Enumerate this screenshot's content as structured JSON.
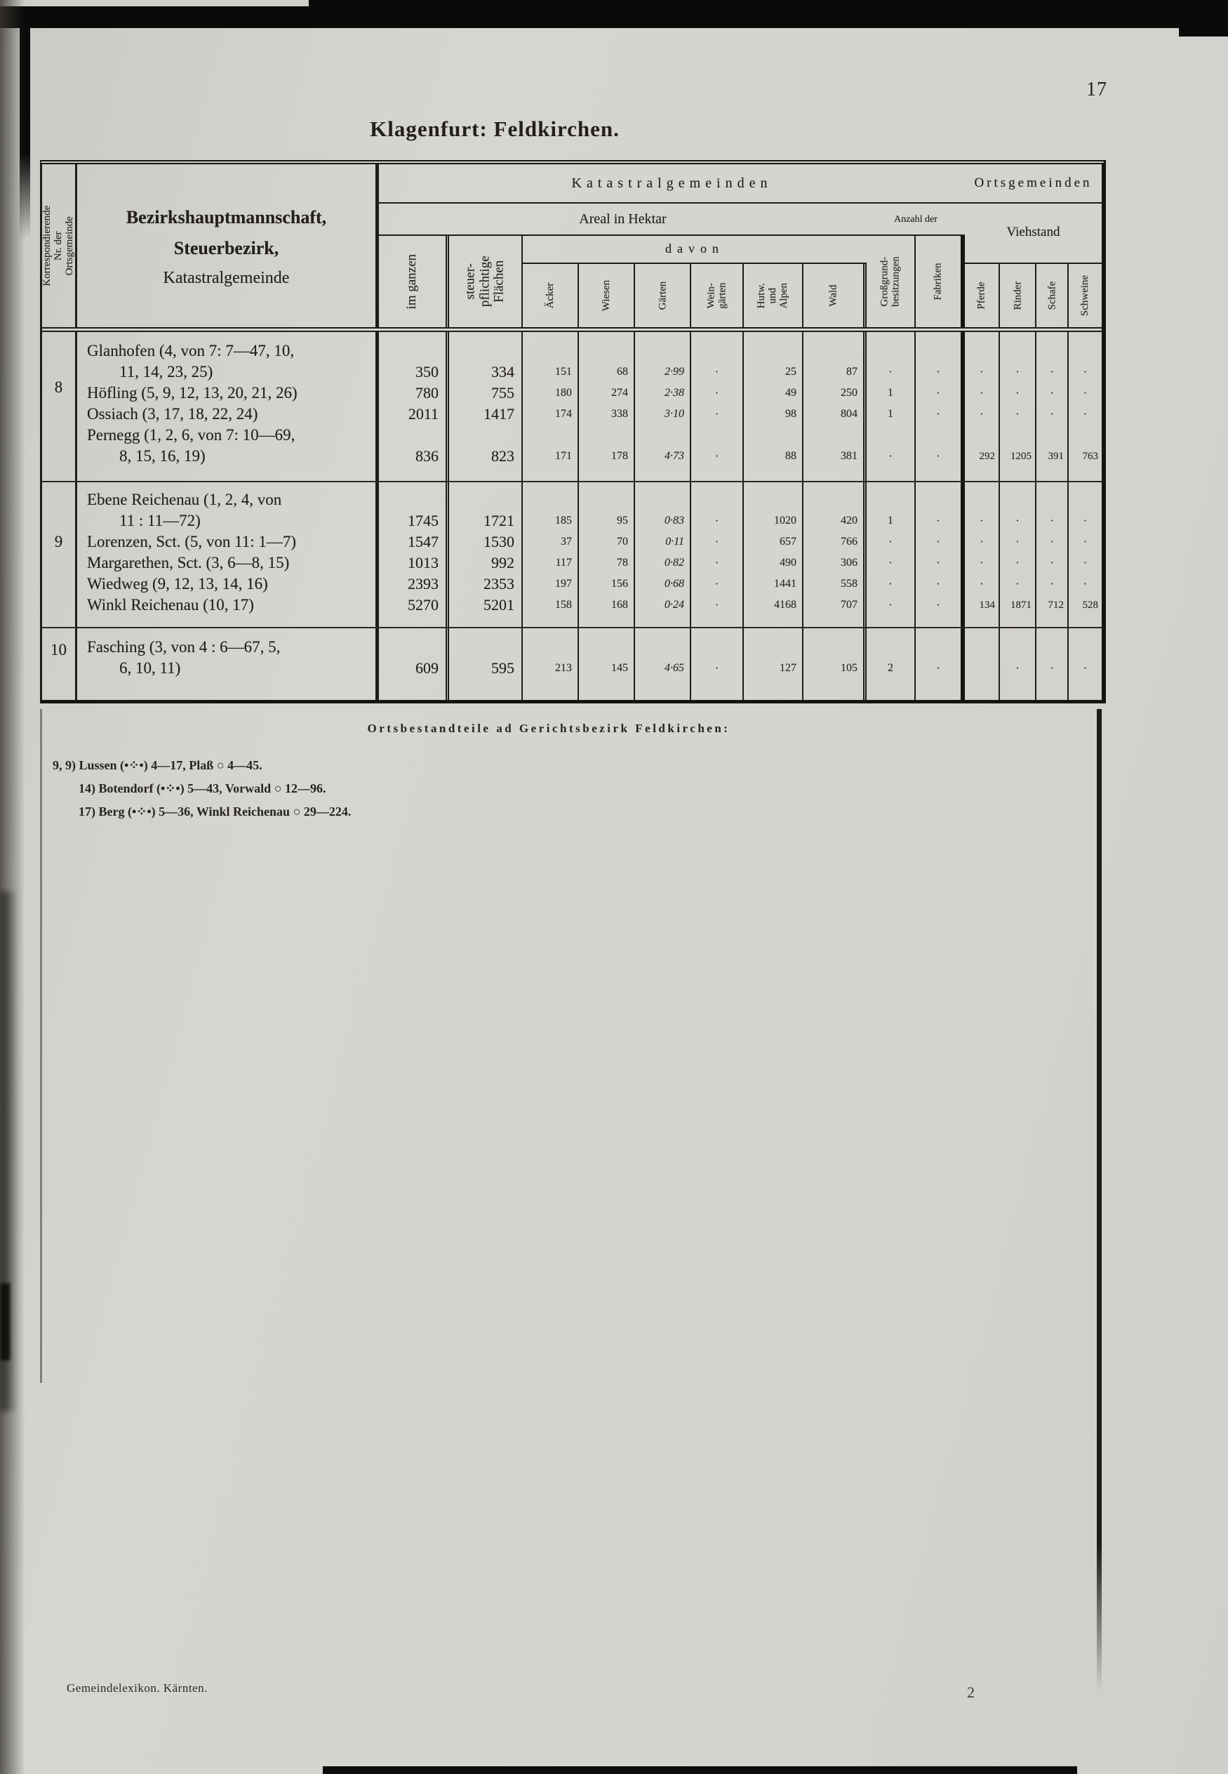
{
  "page": {
    "number": "17",
    "title": "Klagenfurt: Feldkirchen.",
    "footer_left": "Gemeindelexikon. Kärnten.",
    "signature_mark": "2"
  },
  "table": {
    "corner_label": "Korrespondierende\nNr. der Ortsgemeinde",
    "name_header": {
      "line1": "Bezirkshauptmannschaft,",
      "line2": "Steuerbezirk,",
      "line3": "Katastralgemeinde"
    },
    "sections": {
      "katastralgemeinden": "Katastralgemeinden",
      "areal": "Areal in Hektar",
      "davon": "davon",
      "anzahl": "Anzahl der",
      "ortsgemeinden": "Ortsgemeinden",
      "viehstand": "Viehstand"
    },
    "columns": {
      "im_ganzen": "im ganzen",
      "steuerpflichtige": "steuer-\npflichtige\nFlächen",
      "aecker": "Äcker",
      "wiesen": "Wiesen",
      "gaerten": "Gärten",
      "weingaerten": "Wein-\ngärten",
      "hutweiden": "Hutw.\nund\nAlpen",
      "wald": "Wald",
      "grossgrund": "Großgrund-\nbesitzungen",
      "fabriken": "Fabriken",
      "pferde": "Pferde",
      "rinder": "Rinder",
      "schafe": "Schafe",
      "schweine": "Schweine"
    },
    "groups": [
      {
        "nr": "8",
        "lines": [
          {
            "name": "Glanhofen (4, von 7: 7—47, 10,",
            "indent": false,
            "values": [
              "",
              "",
              "",
              "",
              "",
              "",
              "",
              "",
              "",
              "",
              "",
              "",
              "",
              ""
            ]
          },
          {
            "name": "11, 14, 23, 25)",
            "indent": true,
            "values": [
              "350",
              "334",
              "151",
              "68",
              "2·99",
              "·",
              "25",
              "87",
              "·",
              "·",
              "·",
              "·",
              "·",
              "·"
            ]
          },
          {
            "name": "Höfling (5, 9, 12, 13, 20, 21, 26)",
            "indent": false,
            "values": [
              "780",
              "755",
              "180",
              "274",
              "2·38",
              "·",
              "49",
              "250",
              "1",
              "·",
              "·",
              "·",
              "·",
              "·"
            ]
          },
          {
            "name": "Ossiach (3, 17, 18, 22, 24)",
            "indent": false,
            "values": [
              "2011",
              "1417",
              "174",
              "338",
              "3·10",
              "·",
              "98",
              "804",
              "1",
              "·",
              "·",
              "·",
              "·",
              "·"
            ]
          },
          {
            "name": "Pernegg (1, 2, 6, von 7: 10—69,",
            "indent": false,
            "values": [
              "",
              "",
              "",
              "",
              "",
              "",
              "",
              "",
              "",
              "",
              "",
              "",
              "",
              ""
            ]
          },
          {
            "name": "8, 15, 16, 19)",
            "indent": true,
            "values": [
              "836",
              "823",
              "171",
              "178",
              "4·73",
              "·",
              "88",
              "381",
              "·",
              "·",
              "292",
              "1205",
              "391",
              "763"
            ]
          }
        ]
      },
      {
        "nr": "9",
        "lines": [
          {
            "name": "Ebene Reichenau (1, 2, 4, von",
            "indent": false,
            "values": [
              "",
              "",
              "",
              "",
              "",
              "",
              "",
              "",
              "",
              "",
              "",
              "",
              "",
              ""
            ]
          },
          {
            "name": "11 : 11—72)",
            "indent": true,
            "values": [
              "1745",
              "1721",
              "185",
              "95",
              "0·83",
              "·",
              "1020",
              "420",
              "1",
              "·",
              "·",
              "·",
              "·",
              "·"
            ]
          },
          {
            "name": "Lorenzen, Sct. (5, von 11: 1—7)",
            "indent": false,
            "values": [
              "1547",
              "1530",
              "37",
              "70",
              "0·11",
              "·",
              "657",
              "766",
              "·",
              "·",
              "·",
              "·",
              "·",
              "·"
            ]
          },
          {
            "name": "Margarethen, Sct. (3, 6—8, 15)",
            "indent": false,
            "values": [
              "1013",
              "992",
              "117",
              "78",
              "0·82",
              "·",
              "490",
              "306",
              "·",
              "·",
              "·",
              "·",
              "·",
              "·"
            ]
          },
          {
            "name": "Wiedweg (9, 12, 13, 14, 16)",
            "indent": false,
            "values": [
              "2393",
              "2353",
              "197",
              "156",
              "0·68",
              "·",
              "1441",
              "558",
              "·",
              "·",
              "·",
              "·",
              "·",
              "·"
            ]
          },
          {
            "name": "Winkl Reichenau (10, 17)",
            "indent": false,
            "values": [
              "5270",
              "5201",
              "158",
              "168",
              "0·24",
              "·",
              "4168",
              "707",
              "·",
              "·",
              "134",
              "1871",
              "712",
              "528"
            ]
          }
        ]
      },
      {
        "nr": "10",
        "lines": [
          {
            "name": "Fasching (3, von 4 : 6—67, 5,",
            "indent": false,
            "values": [
              "",
              "",
              "",
              "",
              "",
              "",
              "",
              "",
              "",
              "",
              "",
              "",
              "",
              ""
            ]
          },
          {
            "name": "6, 10, 11)",
            "indent": true,
            "values": [
              "609",
              "595",
              "213",
              "145",
              "4·65",
              "·",
              "127",
              "105",
              "2",
              "·",
              "",
              "·",
              "·",
              "·"
            ]
          }
        ]
      }
    ]
  },
  "footnotes": {
    "heading": "Ortsbestandteile ad Gerichtsbezirk Feldkirchen:",
    "lines": [
      "9,  9) Lussen (•⁘•) 4—17, Plaß ○ 4—45.",
      "14) Botendorf (•⁘•) 5—43, Vorwald ○ 12—96.",
      "17) Berg (•⁘•) 5—36, Winkl Reichenau ○ 29—224."
    ]
  }
}
